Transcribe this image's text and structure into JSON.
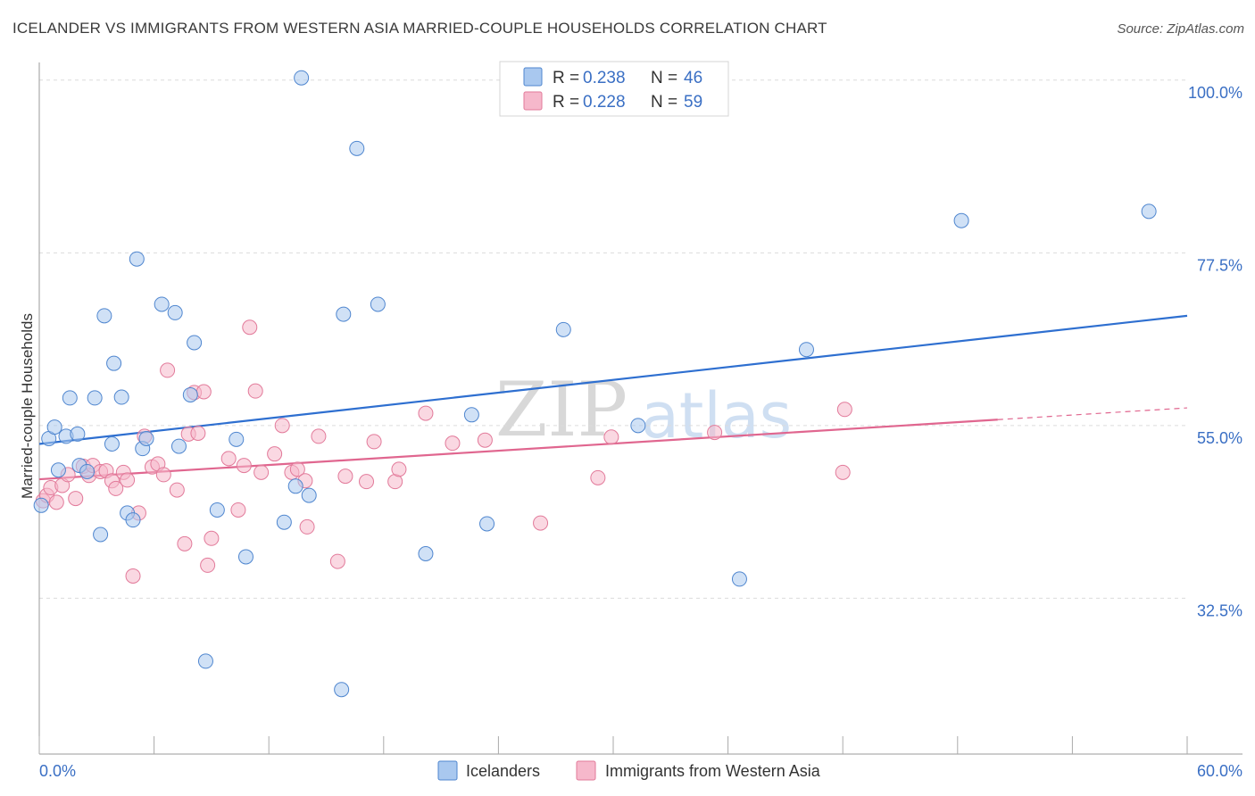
{
  "title": "ICELANDER VS IMMIGRANTS FROM WESTERN ASIA MARRIED-COUPLE HOUSEHOLDS CORRELATION CHART",
  "source": "Source: ZipAtlas.com",
  "watermark": {
    "zip": "ZIP",
    "atlas": "atlas"
  },
  "colors": {
    "blue_fill": "#a9c8ef",
    "blue_stroke": "#4f86cf",
    "blue_line": "#2e6fd0",
    "pink_fill": "#f6b8cb",
    "pink_stroke": "#e27a9a",
    "pink_line": "#e0668f",
    "grid": "#dcdcdc",
    "tick_text": "#3a6fc4"
  },
  "legend": {
    "rows": [
      {
        "r_label": "R = ",
        "r_value": "0.238",
        "n_label": "N = ",
        "n_value": "46"
      },
      {
        "r_label": "R = ",
        "r_value": "0.228",
        "n_label": "N = ",
        "n_value": "59"
      }
    ]
  },
  "chart_data": {
    "type": "scatter",
    "title": "ICELANDER VS IMMIGRANTS FROM WESTERN ASIA MARRIED-COUPLE HOUSEHOLDS CORRELATION CHART",
    "xlabel": "",
    "ylabel": "Married-couple Households",
    "xlim": [
      0,
      60
    ],
    "ylim": [
      12.2,
      102.3
    ],
    "x_tick_labels": [
      "0.0%",
      "60.0%"
    ],
    "y_ticks": [
      {
        "value": 100.0,
        "label": "100.0%"
      },
      {
        "value": 77.5,
        "label": "77.5%"
      },
      {
        "value": 55.0,
        "label": "55.0%"
      },
      {
        "value": 32.5,
        "label": "32.5%"
      }
    ],
    "grid": true,
    "legend_position": "top-center",
    "series": [
      {
        "name": "Icelanders",
        "color": "#4f86cf",
        "r": 0.238,
        "n": 46,
        "trendline": {
          "x": [
            0,
            60
          ],
          "y": [
            52.6,
            69.3
          ],
          "dashed_after": null
        },
        "points": [
          [
            0.1,
            44.6
          ],
          [
            0.5,
            53.3
          ],
          [
            0.8,
            54.8
          ],
          [
            1.0,
            49.2
          ],
          [
            1.4,
            53.6
          ],
          [
            1.6,
            58.6
          ],
          [
            2.0,
            53.9
          ],
          [
            2.1,
            49.8
          ],
          [
            2.5,
            49.0
          ],
          [
            2.9,
            58.6
          ],
          [
            3.2,
            40.8
          ],
          [
            3.4,
            69.3
          ],
          [
            3.8,
            52.6
          ],
          [
            3.9,
            63.1
          ],
          [
            4.3,
            58.7
          ],
          [
            4.6,
            43.6
          ],
          [
            4.9,
            42.7
          ],
          [
            5.1,
            76.7
          ],
          [
            5.4,
            52.0
          ],
          [
            5.6,
            53.3
          ],
          [
            6.4,
            70.8
          ],
          [
            7.1,
            69.7
          ],
          [
            7.3,
            52.3
          ],
          [
            7.9,
            59.0
          ],
          [
            8.1,
            65.8
          ],
          [
            8.7,
            24.3
          ],
          [
            9.3,
            44.0
          ],
          [
            10.3,
            53.2
          ],
          [
            10.8,
            37.9
          ],
          [
            12.8,
            42.4
          ],
          [
            13.4,
            47.1
          ],
          [
            13.7,
            100.3
          ],
          [
            14.1,
            45.9
          ],
          [
            15.8,
            20.6
          ],
          [
            15.9,
            69.5
          ],
          [
            16.6,
            91.1
          ],
          [
            17.7,
            70.8
          ],
          [
            20.2,
            38.3
          ],
          [
            22.6,
            56.4
          ],
          [
            23.4,
            42.2
          ],
          [
            27.4,
            67.5
          ],
          [
            31.3,
            55.0
          ],
          [
            36.6,
            35.0
          ],
          [
            40.1,
            64.9
          ],
          [
            48.2,
            81.7
          ],
          [
            58.0,
            82.9
          ]
        ]
      },
      {
        "name": "Immigrants from Western Asia",
        "color": "#e27a9a",
        "r": 0.228,
        "n": 59,
        "trendline": {
          "x": [
            0,
            60
          ],
          "y": [
            48.0,
            57.3
          ],
          "solid_until_x": 50.1
        },
        "points": [
          [
            0.2,
            45.2
          ],
          [
            0.4,
            45.9
          ],
          [
            0.6,
            46.9
          ],
          [
            0.9,
            45.0
          ],
          [
            1.2,
            47.2
          ],
          [
            1.5,
            48.6
          ],
          [
            1.9,
            45.5
          ],
          [
            2.3,
            49.7
          ],
          [
            2.6,
            48.5
          ],
          [
            2.8,
            49.8
          ],
          [
            3.2,
            49.0
          ],
          [
            3.5,
            49.1
          ],
          [
            3.8,
            47.8
          ],
          [
            4.0,
            46.8
          ],
          [
            4.4,
            48.9
          ],
          [
            4.6,
            47.9
          ],
          [
            4.9,
            35.4
          ],
          [
            5.2,
            43.6
          ],
          [
            5.5,
            53.6
          ],
          [
            5.9,
            49.6
          ],
          [
            6.2,
            50.0
          ],
          [
            6.5,
            48.6
          ],
          [
            6.7,
            62.2
          ],
          [
            7.2,
            46.6
          ],
          [
            7.6,
            39.6
          ],
          [
            7.8,
            53.9
          ],
          [
            8.1,
            59.3
          ],
          [
            8.3,
            54.0
          ],
          [
            8.6,
            59.4
          ],
          [
            8.8,
            36.8
          ],
          [
            9.0,
            40.3
          ],
          [
            9.9,
            50.7
          ],
          [
            10.4,
            44.0
          ],
          [
            10.7,
            49.8
          ],
          [
            11.0,
            67.8
          ],
          [
            11.3,
            59.5
          ],
          [
            11.6,
            48.9
          ],
          [
            12.3,
            51.3
          ],
          [
            12.7,
            55.0
          ],
          [
            13.2,
            48.9
          ],
          [
            13.5,
            49.3
          ],
          [
            13.9,
            47.8
          ],
          [
            14.0,
            41.8
          ],
          [
            14.6,
            53.6
          ],
          [
            15.6,
            37.3
          ],
          [
            16.0,
            48.4
          ],
          [
            17.1,
            47.7
          ],
          [
            17.5,
            52.9
          ],
          [
            18.6,
            47.7
          ],
          [
            18.8,
            49.3
          ],
          [
            20.2,
            56.6
          ],
          [
            21.6,
            52.7
          ],
          [
            23.3,
            53.1
          ],
          [
            26.2,
            42.3
          ],
          [
            29.2,
            48.2
          ],
          [
            29.9,
            53.5
          ],
          [
            35.3,
            54.1
          ],
          [
            42.0,
            48.9
          ],
          [
            42.1,
            57.1
          ]
        ]
      }
    ]
  }
}
